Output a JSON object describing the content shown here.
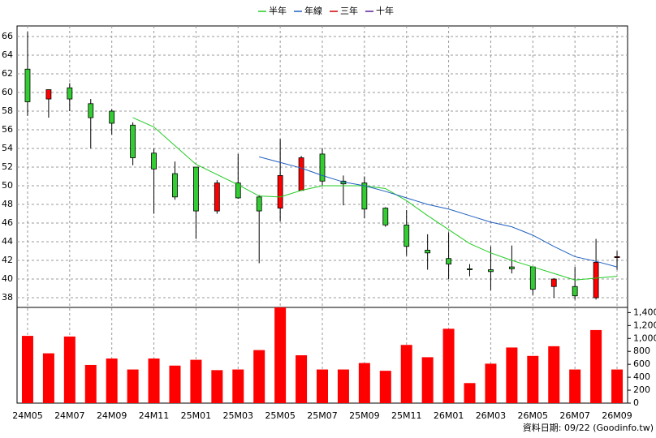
{
  "chart_data": [
    {
      "type": "candlestick",
      "open": [
        62.5,
        59.3,
        60.5,
        58.8,
        58.0,
        56.5,
        53.5,
        51.3,
        52.0,
        47.3,
        50.3,
        48.8,
        47.6,
        49.5,
        53.4,
        50.5,
        50.3,
        47.6,
        45.8,
        43.1,
        42.2,
        41.1,
        41.0,
        41.3,
        41.3,
        39.2,
        39.2,
        38.0,
        42.3
      ],
      "high": [
        66.5,
        60.3,
        61.0,
        59.3,
        58.2,
        56.8,
        54.0,
        52.6,
        52.0,
        50.6,
        53.4,
        49.0,
        55.0,
        53.2,
        54.0,
        51.1,
        51.0,
        47.7,
        47.4,
        44.8,
        45.0,
        41.6,
        43.5,
        43.6,
        41.3,
        40.1,
        41.3,
        44.3,
        43.0
      ],
      "low": [
        57.5,
        57.3,
        58.0,
        54.0,
        55.5,
        52.2,
        47.0,
        48.5,
        44.3,
        47.0,
        48.6,
        41.7,
        46.2,
        49.5,
        50.0,
        47.9,
        46.5,
        45.6,
        42.5,
        41.0,
        40.0,
        40.3,
        38.8,
        40.6,
        38.3,
        38.0,
        37.8,
        37.8,
        41.0
      ],
      "close": [
        59.0,
        60.3,
        59.3,
        57.3,
        56.7,
        53.0,
        51.8,
        48.8,
        47.3,
        50.3,
        48.7,
        47.3,
        51.1,
        53.0,
        50.5,
        50.2,
        47.5,
        45.8,
        43.5,
        42.8,
        41.6,
        41.0,
        40.8,
        41.1,
        38.9,
        40.0,
        38.2,
        41.8,
        42.4
      ],
      "up_color": "#ff0000",
      "down_color": "#33cc33",
      "series": [
        {
          "name": "半年",
          "color": "#22cc22",
          "values": [
            null,
            null,
            null,
            null,
            null,
            57.3,
            56.3,
            54.3,
            52.3,
            51.2,
            50.1,
            48.9,
            48.8,
            49.5,
            50.0,
            50.0,
            50.0,
            49.7,
            48.4,
            46.8,
            45.3,
            43.8,
            42.8,
            42.0,
            41.3,
            40.6,
            39.9,
            40.1,
            40.3
          ]
        },
        {
          "name": "年線",
          "color": "#1f5fbf",
          "values": [
            null,
            null,
            null,
            null,
            null,
            null,
            null,
            null,
            null,
            null,
            null,
            53.1,
            52.5,
            51.9,
            51.1,
            50.4,
            50.0,
            49.4,
            48.7,
            48.0,
            47.5,
            46.8,
            46.1,
            45.6,
            44.7,
            43.5,
            42.4,
            41.9,
            41.3
          ]
        },
        {
          "name": "三年",
          "color": "#cc0000",
          "values": [
            null,
            null,
            null,
            null,
            null,
            null,
            null,
            null,
            null,
            null,
            null,
            null,
            null,
            null,
            null,
            null,
            null,
            null,
            null,
            null,
            null,
            null,
            null,
            null,
            null,
            null,
            null,
            null,
            null
          ]
        },
        {
          "name": "十年",
          "color": "#5a1f9a",
          "values": [
            null,
            null,
            null,
            null,
            null,
            null,
            null,
            null,
            null,
            null,
            null,
            null,
            null,
            null,
            null,
            null,
            null,
            null,
            null,
            null,
            null,
            null,
            null,
            null,
            null,
            null,
            null,
            null,
            null
          ]
        }
      ],
      "ylim": [
        36.96,
        67.13
      ],
      "yticks": [
        38,
        40,
        42,
        44,
        46,
        48,
        50,
        52,
        54,
        56,
        58,
        60,
        62,
        64,
        66
      ],
      "grid": true,
      "legend": "top"
    },
    {
      "type": "bar",
      "categories": [
        "24M05",
        null,
        "24M07",
        null,
        "24M09",
        null,
        "24M11",
        null,
        "25M01",
        null,
        "25M03",
        null,
        "25M05",
        null,
        "25M07",
        null,
        "25M09",
        null,
        "25M11",
        null,
        "26M01",
        null,
        "26M03",
        null,
        "26M05",
        null,
        "26M07",
        null,
        "26M09"
      ],
      "values": [
        1040,
        770,
        1030,
        590,
        690,
        520,
        690,
        580,
        670,
        510,
        520,
        820,
        1480,
        740,
        520,
        520,
        620,
        500,
        900,
        710,
        1150,
        310,
        610,
        860,
        730,
        880,
        520,
        1130,
        520
      ],
      "color": "#ff0000",
      "ylim": [
        0,
        1480
      ],
      "yticks": [
        0,
        200,
        400,
        600,
        800,
        {
          "value": 1000,
          "label": "1,000"
        },
        {
          "value": 1200,
          "label": "1,200"
        },
        {
          "value": 1400,
          "label": "1,400"
        }
      ],
      "grid": true,
      "note": "資料日期: 09/22  (Goodinfo.tw)"
    }
  ]
}
